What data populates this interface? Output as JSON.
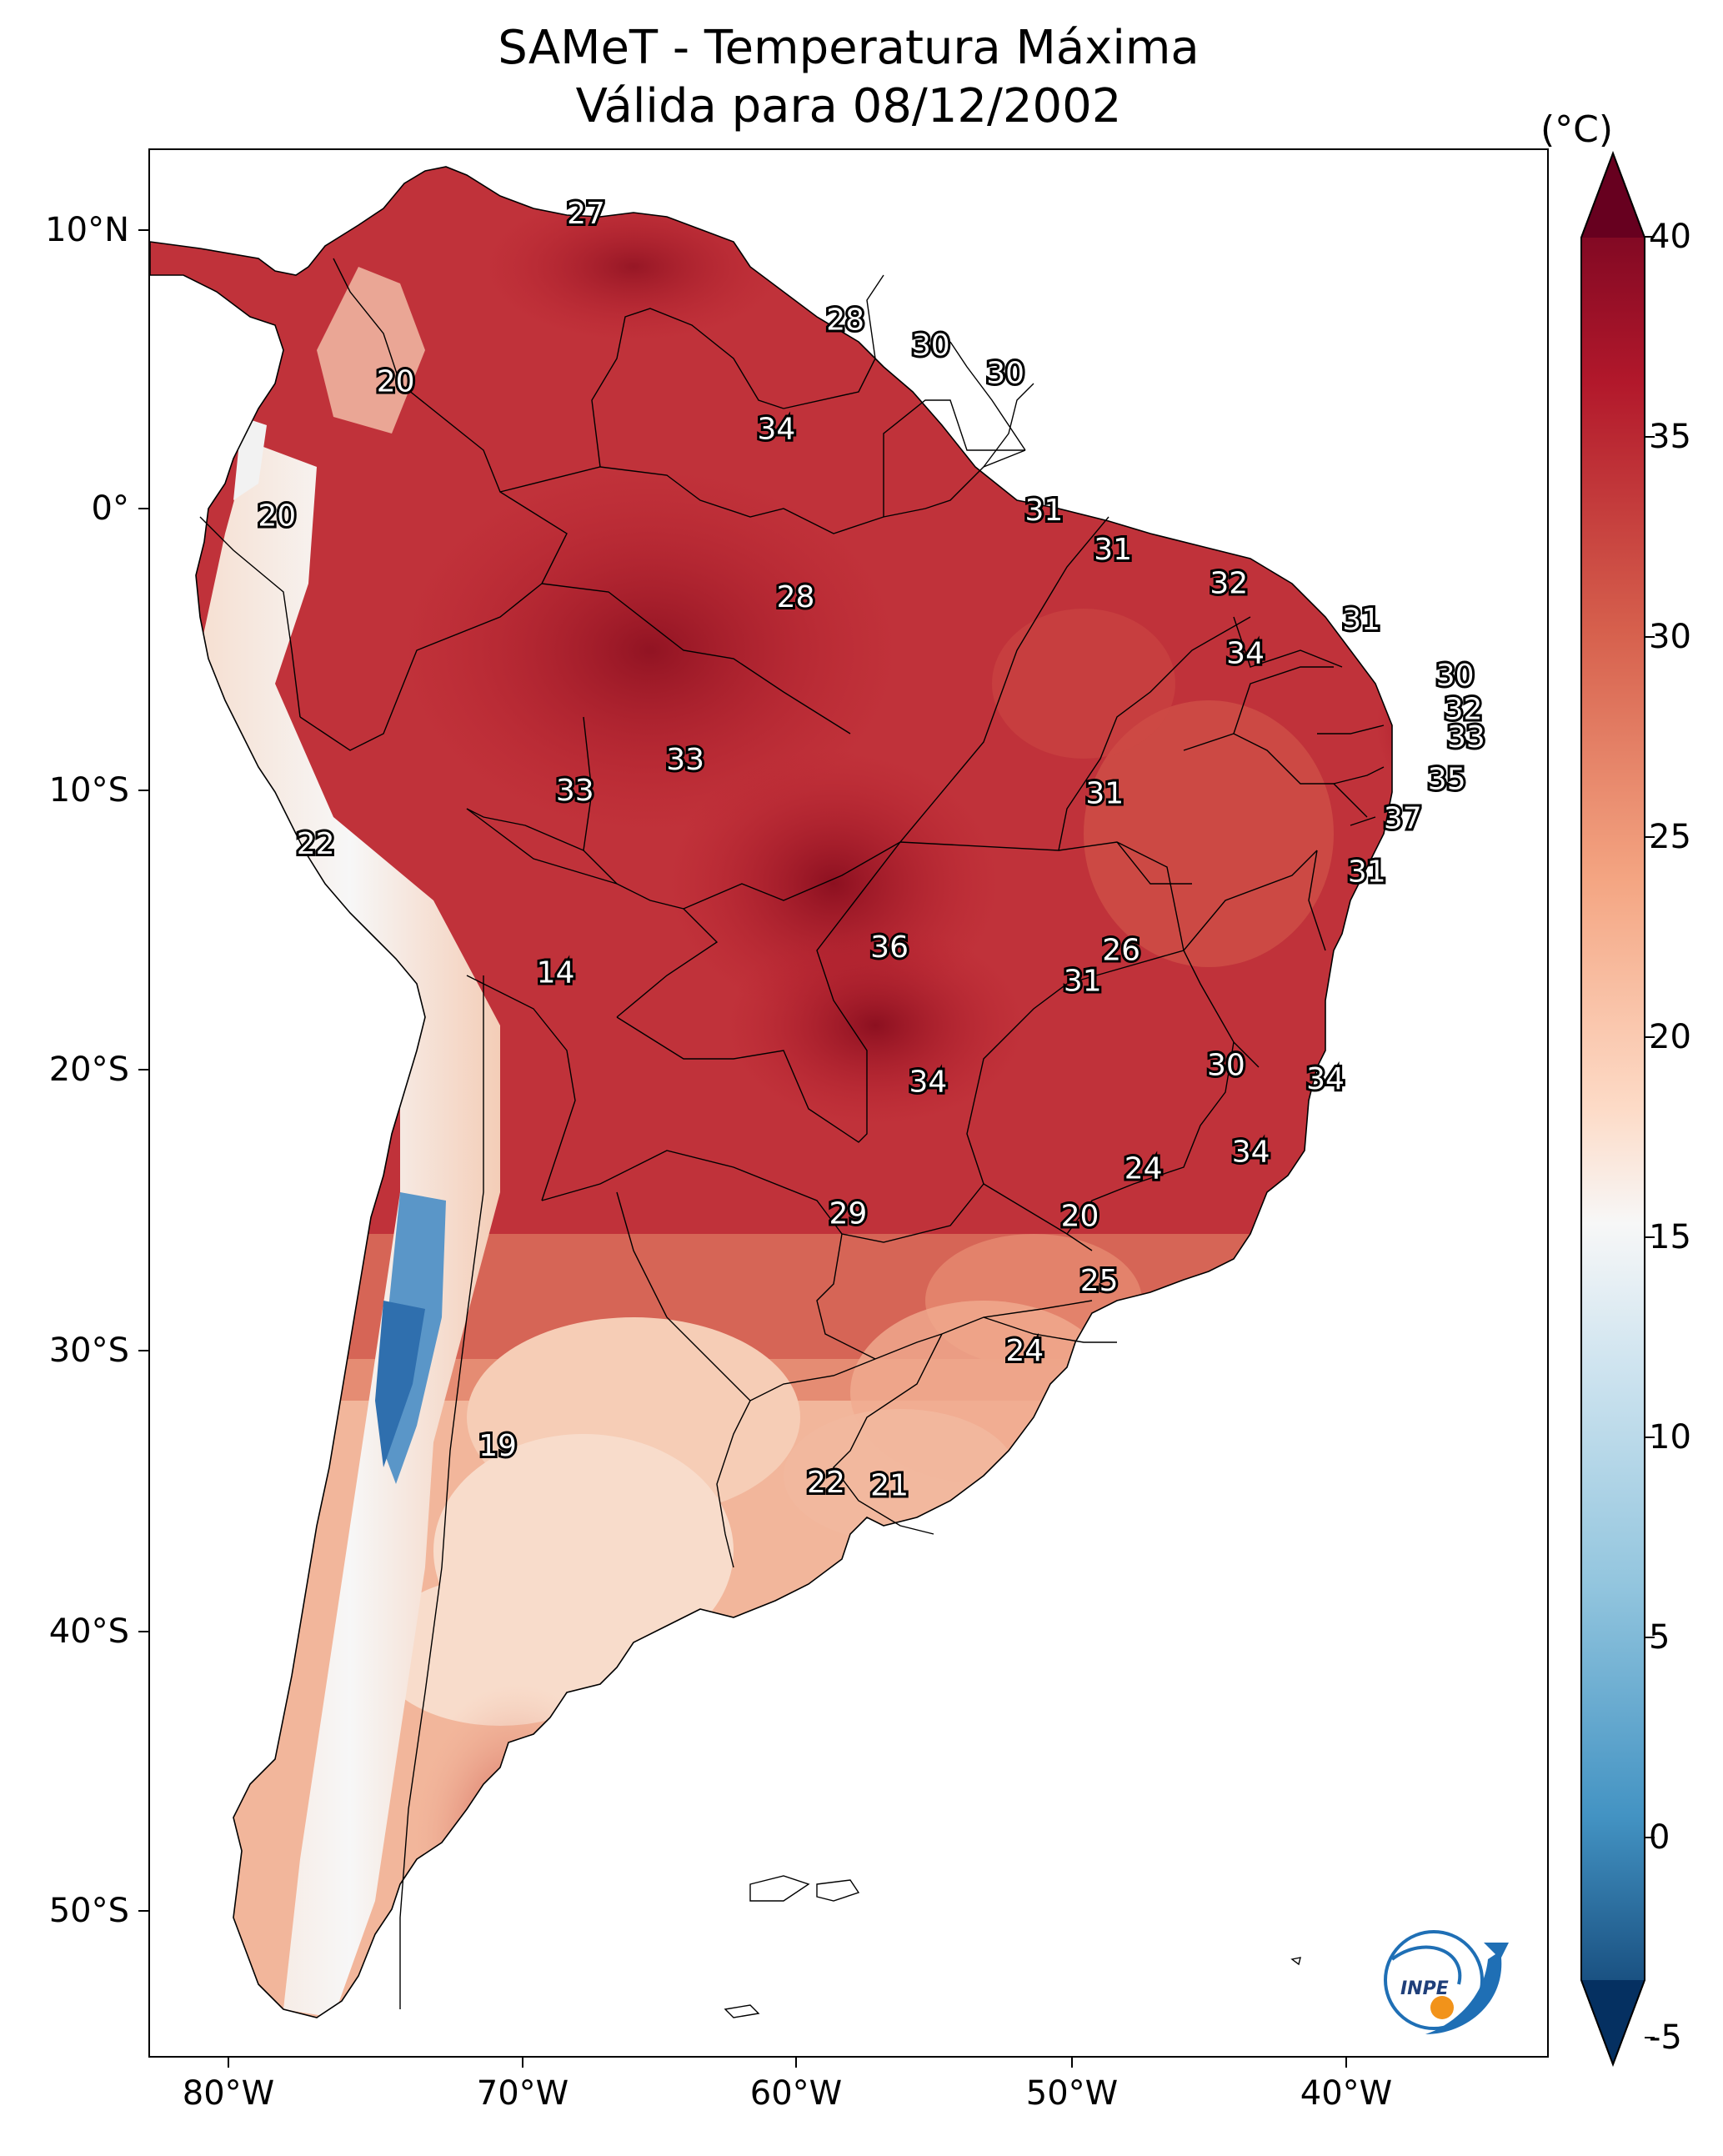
{
  "title": {
    "line1": "SAMeT - Temperatura Máxima",
    "line2": "Válida para 08/12/2002"
  },
  "colorbar": {
    "unit": "(°C)",
    "ticks": [
      "40",
      "35",
      "30",
      "25",
      "20",
      "15",
      "10",
      "5",
      "0",
      "-5"
    ],
    "range": [
      -5,
      40
    ],
    "cmap": "RdBu_r"
  },
  "axes": {
    "lon_ticks": [
      "80°W",
      "70°W",
      "60°W",
      "50°W",
      "40°W"
    ],
    "lat_ticks": [
      "10°N",
      "0°",
      "10°S",
      "20°S",
      "30°S",
      "40°S",
      "50°S"
    ]
  },
  "labels": [
    {
      "v": "27",
      "lon": -67.1,
      "lat": 10.6
    },
    {
      "v": "28",
      "lon": -57.7,
      "lat": 6.8
    },
    {
      "v": "30",
      "lon": -54.6,
      "lat": 5.9
    },
    {
      "v": "30",
      "lon": -51.9,
      "lat": 4.9
    },
    {
      "v": "20",
      "lon": -74.0,
      "lat": 4.6
    },
    {
      "v": "34",
      "lon": -60.2,
      "lat": 2.9
    },
    {
      "v": "31",
      "lon": -50.5,
      "lat": 0.0
    },
    {
      "v": "20",
      "lon": -78.3,
      "lat": -0.2
    },
    {
      "v": "31",
      "lon": -48.0,
      "lat": -1.4
    },
    {
      "v": "32",
      "lon": -43.8,
      "lat": -2.6
    },
    {
      "v": "28",
      "lon": -59.5,
      "lat": -3.1
    },
    {
      "v": "31",
      "lon": -39.0,
      "lat": -3.9
    },
    {
      "v": "34",
      "lon": -43.2,
      "lat": -5.1
    },
    {
      "v": "30",
      "lon": -35.6,
      "lat": -5.9
    },
    {
      "v": "32",
      "lon": -35.3,
      "lat": -7.1
    },
    {
      "v": "33",
      "lon": -35.2,
      "lat": -8.1
    },
    {
      "v": "33",
      "lon": -63.5,
      "lat": -8.9
    },
    {
      "v": "35",
      "lon": -35.9,
      "lat": -9.6
    },
    {
      "v": "33",
      "lon": -67.5,
      "lat": -10.0
    },
    {
      "v": "31",
      "lon": -48.3,
      "lat": -10.1
    },
    {
      "v": "37",
      "lon": -37.5,
      "lat": -11.0
    },
    {
      "v": "22",
      "lon": -76.9,
      "lat": -11.9
    },
    {
      "v": "31",
      "lon": -38.8,
      "lat": -12.9
    },
    {
      "v": "36",
      "lon": -56.1,
      "lat": -15.6
    },
    {
      "v": "26",
      "lon": -47.7,
      "lat": -15.7
    },
    {
      "v": "14",
      "lon": -68.2,
      "lat": -16.5
    },
    {
      "v": "31",
      "lon": -49.1,
      "lat": -16.8
    },
    {
      "v": "30",
      "lon": -43.9,
      "lat": -19.8
    },
    {
      "v": "34",
      "lon": -54.7,
      "lat": -20.4
    },
    {
      "v": "34",
      "lon": -40.3,
      "lat": -20.3
    },
    {
      "v": "34",
      "lon": -43.0,
      "lat": -22.9
    },
    {
      "v": "24",
      "lon": -46.9,
      "lat": -23.5
    },
    {
      "v": "29",
      "lon": -57.6,
      "lat": -25.1
    },
    {
      "v": "20",
      "lon": -49.2,
      "lat": -25.2
    },
    {
      "v": "25",
      "lon": -48.5,
      "lat": -27.5
    },
    {
      "v": "24",
      "lon": -51.2,
      "lat": -30.0
    },
    {
      "v": "19",
      "lon": -70.3,
      "lat": -33.4
    },
    {
      "v": "22",
      "lon": -58.4,
      "lat": -34.7
    },
    {
      "v": "21",
      "lon": -56.1,
      "lat": -34.8
    }
  ]
}
